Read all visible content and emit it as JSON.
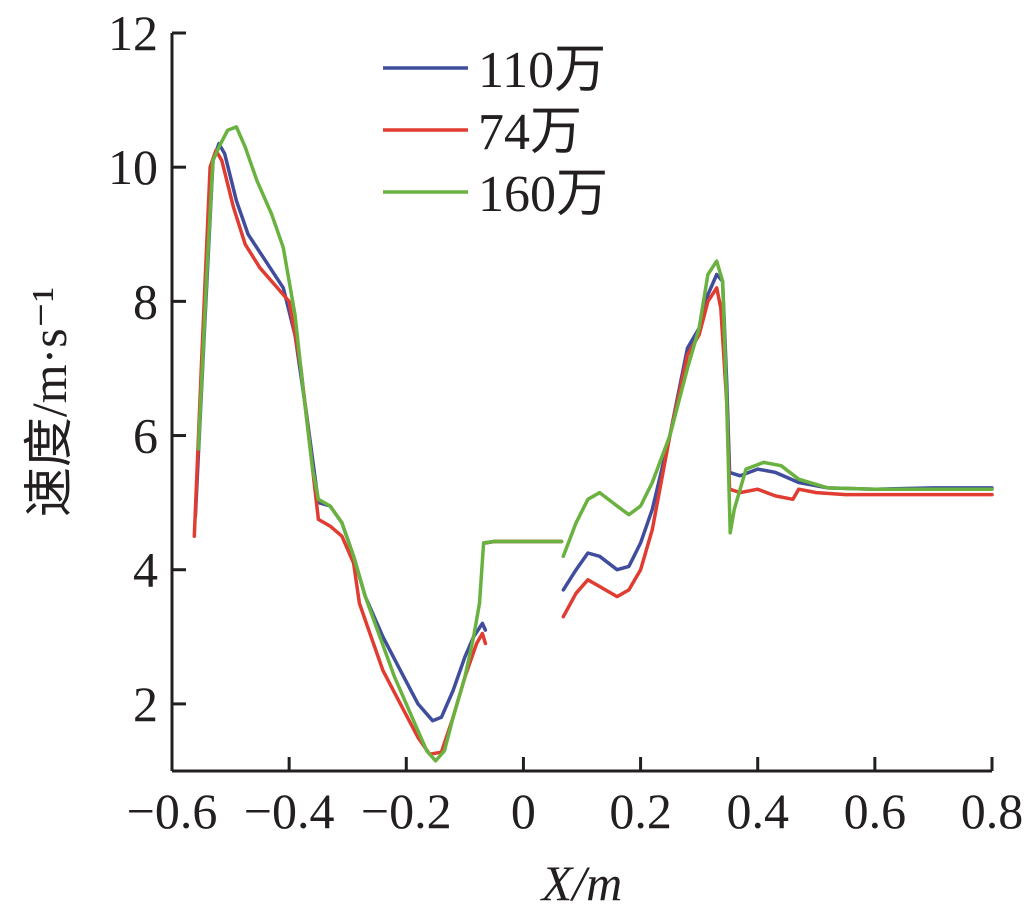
{
  "chart_data": {
    "type": "line",
    "xlabel": "X/m",
    "ylabel": "速度/m·s⁻¹",
    "xlim": [
      -0.6,
      0.8
    ],
    "ylim": [
      1,
      12
    ],
    "xticks": [
      -0.6,
      -0.4,
      -0.2,
      0,
      0.2,
      0.4,
      0.6,
      0.8
    ],
    "xtick_labels": [
      "−0.6",
      "−0.4",
      "−0.2",
      "0",
      "0.2",
      "0.4",
      "0.6",
      "0.8"
    ],
    "yticks": [
      2,
      4,
      6,
      8,
      10,
      12
    ],
    "ytick_labels": [
      "2",
      "4",
      "6",
      "8",
      "10",
      "12"
    ],
    "grid": false,
    "legend_position": "top-center",
    "series": [
      {
        "name": "110万",
        "color": "#3f4d9c",
        "segments": [
          [
            [
              -0.56,
              4.8
            ],
            [
              -0.545,
              7.5
            ],
            [
              -0.53,
              10.1
            ],
            [
              -0.52,
              10.35
            ],
            [
              -0.51,
              10.2
            ],
            [
              -0.49,
              9.5
            ],
            [
              -0.47,
              9.0
            ],
            [
              -0.44,
              8.6
            ],
            [
              -0.41,
              8.2
            ],
            [
              -0.39,
              7.5
            ],
            [
              -0.37,
              6.3
            ],
            [
              -0.35,
              5.0
            ],
            [
              -0.33,
              4.95
            ],
            [
              -0.31,
              4.7
            ],
            [
              -0.29,
              4.2
            ],
            [
              -0.27,
              3.6
            ],
            [
              -0.24,
              3.0
            ],
            [
              -0.21,
              2.5
            ],
            [
              -0.18,
              2.0
            ],
            [
              -0.155,
              1.75
            ],
            [
              -0.14,
              1.8
            ],
            [
              -0.12,
              2.2
            ],
            [
              -0.1,
              2.7
            ],
            [
              -0.085,
              3.0
            ],
            [
              -0.07,
              3.2
            ],
            [
              -0.065,
              3.1
            ]
          ],
          [
            [
              -0.065,
              4.4
            ],
            [
              -0.05,
              4.42
            ],
            [
              0.06,
              4.42
            ],
            [
              0.065,
              4.42
            ]
          ],
          [
            [
              0.068,
              3.7
            ],
            [
              0.09,
              4.0
            ],
            [
              0.11,
              4.25
            ],
            [
              0.13,
              4.2
            ],
            [
              0.16,
              4.0
            ],
            [
              0.18,
              4.05
            ],
            [
              0.2,
              4.4
            ],
            [
              0.22,
              4.9
            ],
            [
              0.25,
              6.0
            ],
            [
              0.28,
              7.3
            ],
            [
              0.3,
              7.6
            ],
            [
              0.315,
              8.1
            ],
            [
              0.33,
              8.4
            ],
            [
              0.34,
              8.3
            ],
            [
              0.347,
              6.8
            ],
            [
              0.352,
              5.45
            ],
            [
              0.37,
              5.4
            ],
            [
              0.4,
              5.5
            ],
            [
              0.43,
              5.45
            ],
            [
              0.47,
              5.3
            ],
            [
              0.52,
              5.22
            ],
            [
              0.6,
              5.2
            ],
            [
              0.7,
              5.22
            ],
            [
              0.8,
              5.22
            ]
          ]
        ]
      },
      {
        "name": "74万",
        "color": "#e03c31",
        "segments": [
          [
            [
              -0.562,
              4.5
            ],
            [
              -0.55,
              7.0
            ],
            [
              -0.535,
              10.0
            ],
            [
              -0.525,
              10.25
            ],
            [
              -0.515,
              10.1
            ],
            [
              -0.495,
              9.4
            ],
            [
              -0.475,
              8.85
            ],
            [
              -0.45,
              8.5
            ],
            [
              -0.42,
              8.2
            ],
            [
              -0.4,
              8.0
            ],
            [
              -0.38,
              7.0
            ],
            [
              -0.36,
              5.5
            ],
            [
              -0.35,
              4.75
            ],
            [
              -0.33,
              4.65
            ],
            [
              -0.31,
              4.5
            ],
            [
              -0.29,
              4.1
            ],
            [
              -0.28,
              3.5
            ],
            [
              -0.26,
              3.0
            ],
            [
              -0.24,
              2.5
            ],
            [
              -0.21,
              2.0
            ],
            [
              -0.18,
              1.5
            ],
            [
              -0.16,
              1.25
            ],
            [
              -0.14,
              1.28
            ],
            [
              -0.12,
              1.8
            ],
            [
              -0.1,
              2.4
            ],
            [
              -0.08,
              2.9
            ],
            [
              -0.07,
              3.05
            ],
            [
              -0.065,
              2.9
            ]
          ],
          [
            [
              -0.065,
              4.4
            ],
            [
              -0.05,
              4.42
            ],
            [
              0.06,
              4.42
            ],
            [
              0.065,
              4.42
            ]
          ],
          [
            [
              0.068,
              3.3
            ],
            [
              0.09,
              3.65
            ],
            [
              0.11,
              3.85
            ],
            [
              0.13,
              3.75
            ],
            [
              0.16,
              3.6
            ],
            [
              0.18,
              3.7
            ],
            [
              0.2,
              4.0
            ],
            [
              0.22,
              4.6
            ],
            [
              0.25,
              6.0
            ],
            [
              0.28,
              7.2
            ],
            [
              0.3,
              7.5
            ],
            [
              0.315,
              8.0
            ],
            [
              0.33,
              8.2
            ],
            [
              0.337,
              7.9
            ],
            [
              0.347,
              6.5
            ],
            [
              0.352,
              5.2
            ],
            [
              0.37,
              5.15
            ],
            [
              0.4,
              5.2
            ],
            [
              0.43,
              5.1
            ],
            [
              0.46,
              5.05
            ],
            [
              0.47,
              5.2
            ],
            [
              0.5,
              5.15
            ],
            [
              0.55,
              5.12
            ],
            [
              0.65,
              5.12
            ],
            [
              0.8,
              5.12
            ]
          ]
        ]
      },
      {
        "name": "160万",
        "color": "#6ab23f",
        "segments": [
          [
            [
              -0.555,
              5.8
            ],
            [
              -0.54,
              8.5
            ],
            [
              -0.53,
              10.1
            ],
            [
              -0.52,
              10.3
            ],
            [
              -0.505,
              10.55
            ],
            [
              -0.49,
              10.6
            ],
            [
              -0.475,
              10.3
            ],
            [
              -0.455,
              9.8
            ],
            [
              -0.43,
              9.3
            ],
            [
              -0.41,
              8.8
            ],
            [
              -0.39,
              7.8
            ],
            [
              -0.375,
              6.6
            ],
            [
              -0.36,
              5.5
            ],
            [
              -0.35,
              5.05
            ],
            [
              -0.33,
              4.95
            ],
            [
              -0.31,
              4.7
            ],
            [
              -0.29,
              4.2
            ],
            [
              -0.27,
              3.6
            ],
            [
              -0.245,
              3.0
            ],
            [
              -0.22,
              2.4
            ],
            [
              -0.19,
              1.8
            ],
            [
              -0.165,
              1.3
            ],
            [
              -0.15,
              1.15
            ],
            [
              -0.135,
              1.3
            ],
            [
              -0.12,
              1.8
            ],
            [
              -0.1,
              2.4
            ],
            [
              -0.085,
              3.0
            ],
            [
              -0.075,
              3.5
            ]
          ],
          [
            [
              -0.075,
              3.5
            ],
            [
              -0.068,
              4.4
            ],
            [
              -0.05,
              4.42
            ],
            [
              0.06,
              4.42
            ],
            [
              0.065,
              4.42
            ]
          ],
          [
            [
              0.068,
              4.2
            ],
            [
              0.09,
              4.7
            ],
            [
              0.11,
              5.05
            ],
            [
              0.13,
              5.15
            ],
            [
              0.16,
              4.95
            ],
            [
              0.18,
              4.82
            ],
            [
              0.2,
              4.95
            ],
            [
              0.22,
              5.3
            ],
            [
              0.25,
              6.0
            ],
            [
              0.28,
              7.0
            ],
            [
              0.3,
              7.6
            ],
            [
              0.315,
              8.4
            ],
            [
              0.33,
              8.6
            ],
            [
              0.34,
              8.3
            ],
            [
              0.347,
              6.5
            ],
            [
              0.353,
              4.55
            ],
            [
              0.36,
              4.9
            ],
            [
              0.38,
              5.5
            ],
            [
              0.41,
              5.6
            ],
            [
              0.44,
              5.55
            ],
            [
              0.47,
              5.35
            ],
            [
              0.52,
              5.22
            ],
            [
              0.6,
              5.2
            ],
            [
              0.7,
              5.2
            ],
            [
              0.8,
              5.2
            ]
          ]
        ]
      }
    ]
  }
}
